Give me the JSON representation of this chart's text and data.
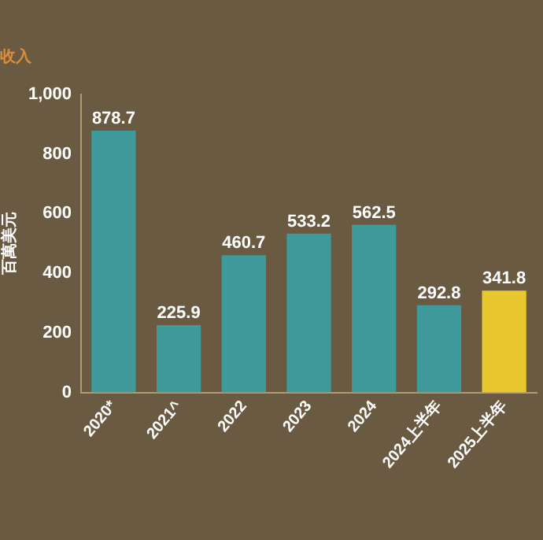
{
  "chart_data": {
    "type": "bar",
    "title": "收入",
    "ylabel": "百萬美元",
    "categories": [
      "2020*",
      "2021^",
      "2022",
      "2023",
      "2024",
      "2024上半年",
      "2025上半年"
    ],
    "values": [
      878.7,
      225.9,
      460.7,
      533.2,
      562.5,
      292.8,
      341.8
    ],
    "colors": [
      "#3f9a9c",
      "#3f9a9c",
      "#3f9a9c",
      "#3f9a9c",
      "#3f9a9c",
      "#3f9a9c",
      "#e8c82e"
    ],
    "ylim": [
      0,
      1000
    ],
    "yticks": [
      0,
      200,
      400,
      600,
      800,
      {
        "value": 1000,
        "label": "1,000"
      }
    ],
    "grid": false,
    "legend": false,
    "data_labels": true
  }
}
